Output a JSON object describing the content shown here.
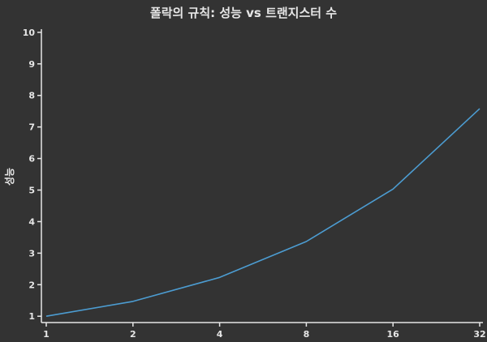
{
  "chart_data": {
    "type": "line",
    "title": "폴락의 규칙: 성능 vs 트랜지스터 수",
    "xlabel": "",
    "ylabel": "성능",
    "x_scale": "log2",
    "x": [
      1,
      2,
      4,
      8,
      16,
      32
    ],
    "x_tick_labels": [
      "1",
      "2",
      "4",
      "8",
      "16",
      "32"
    ],
    "y_ticks": [
      1,
      2,
      3,
      4,
      5,
      6,
      7,
      8,
      9,
      10
    ],
    "ylim": [
      0.8,
      10.1
    ],
    "xlim": [
      1,
      32
    ],
    "grid": false,
    "series": [
      {
        "values": [
          1,
          1.47,
          2.23,
          3.37,
          5.03,
          7.58
        ],
        "color": "#4c9cd1"
      }
    ]
  },
  "colors": {
    "background": "#333333",
    "text": "#e6e6e6",
    "line": "#4c9cd1"
  }
}
